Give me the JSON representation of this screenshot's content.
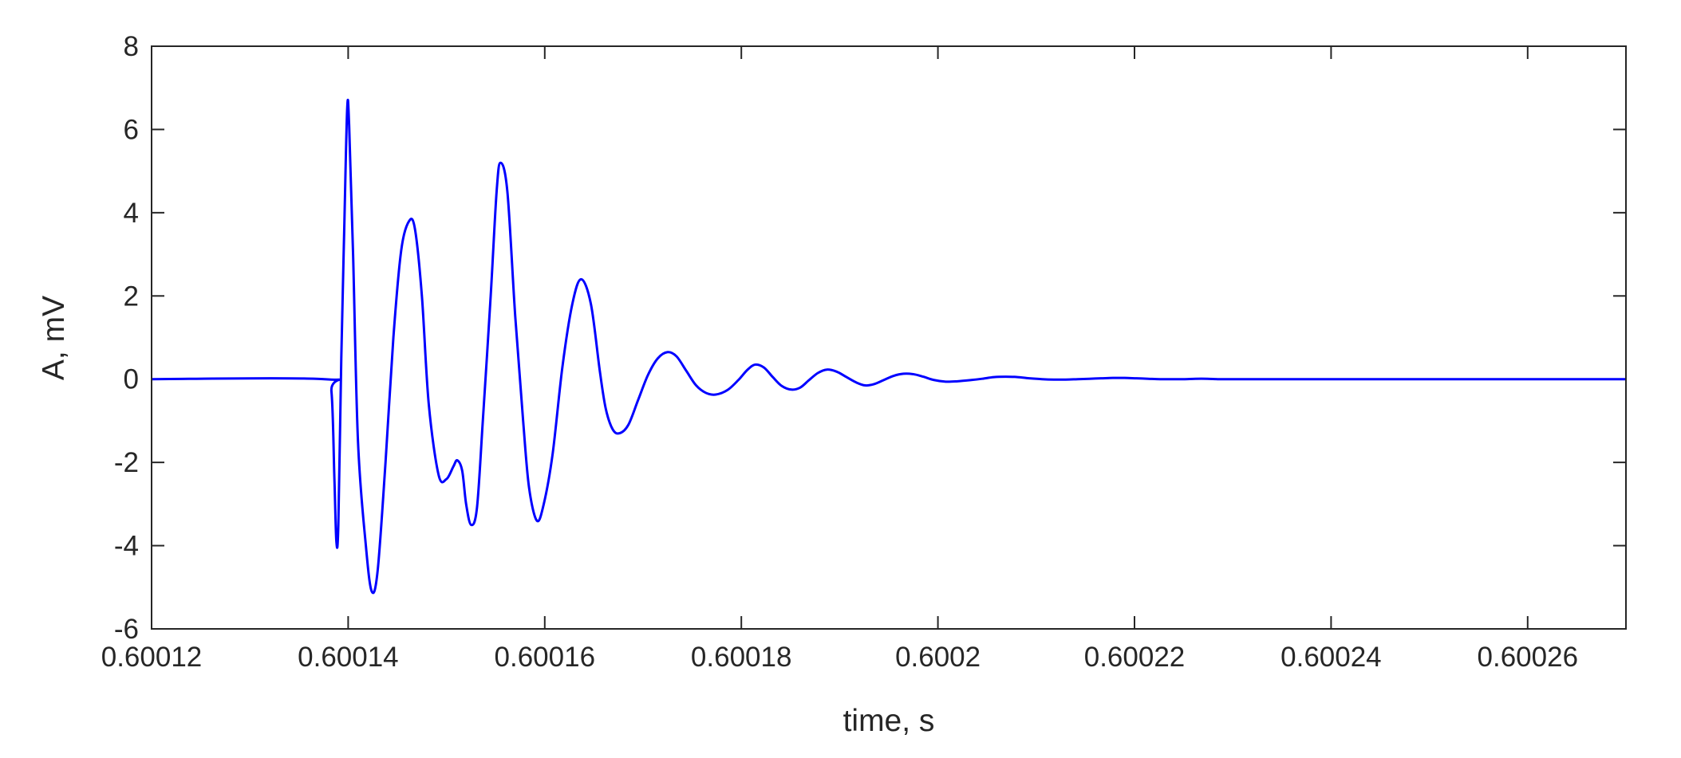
{
  "chart_data": {
    "type": "line",
    "title": "",
    "xlabel": "time, s",
    "ylabel": "A, mV",
    "xlim": [
      0.60012,
      0.60027
    ],
    "ylim": [
      -6,
      8
    ],
    "grid": false,
    "line_color": "#0000ff",
    "axis_color": "#262626",
    "x_ticks": [
      0.60012,
      0.60014,
      0.60016,
      0.60018,
      0.6002,
      0.60022,
      0.60024,
      0.60026
    ],
    "x_tick_labels": [
      "0.60012",
      "0.60014",
      "0.60016",
      "0.60018",
      "0.6002",
      "0.60022",
      "0.60024",
      "0.60026"
    ],
    "y_ticks": [
      -6,
      -4,
      -2,
      0,
      2,
      4,
      6,
      8
    ],
    "y_tick_labels": [
      "-6",
      "-4",
      "-2",
      "0",
      "2",
      "4",
      "6",
      "8"
    ],
    "series": [
      {
        "x": [
          0.60012,
          0.6001376,
          0.6001383,
          0.6001386,
          0.6001388,
          0.600139,
          0.6001393,
          0.6001396,
          0.6001399,
          0.6001401,
          0.6001405,
          0.600141,
          0.6001418,
          0.6001424,
          0.600143,
          0.6001438,
          0.6001446,
          0.6001454,
          0.6001462,
          0.6001468,
          0.6001475,
          0.6001482,
          0.6001492,
          0.60015,
          0.6001507,
          0.6001511,
          0.6001516,
          0.600152,
          0.6001525,
          0.6001531,
          0.6001537,
          0.6001545,
          0.6001551,
          0.6001555,
          0.6001562,
          0.600157,
          0.6001578,
          0.6001584,
          0.6001592,
          0.6001599,
          0.6001608,
          0.6001618,
          0.6001628,
          0.6001637,
          0.6001647,
          0.6001656,
          0.6001662,
          0.6001669,
          0.6001676,
          0.6001685,
          0.6001695,
          0.6001705,
          0.6001715,
          0.6001725,
          0.6001734,
          0.6001744,
          0.6001754,
          0.6001764,
          0.6001774,
          0.6001786,
          0.6001797,
          0.6001806,
          0.6001814,
          0.6001823,
          0.6001832,
          0.6001841,
          0.6001851,
          0.600186,
          0.6001869,
          0.6001878,
          0.6001887,
          0.6001897,
          0.6001907,
          0.6001917,
          0.6001926,
          0.6001935,
          0.6001945,
          0.6001955,
          0.6001965,
          0.6001975,
          0.6001985,
          0.6001996,
          0.6002008,
          0.600202,
          0.6002034,
          0.6002045,
          0.6002057,
          0.6002069,
          0.6002081,
          0.6002093,
          0.6002106,
          0.6002118,
          0.600213,
          0.6002142,
          0.6002154,
          0.6002166,
          0.6002178,
          0.600219,
          0.6002202,
          0.6002214,
          0.6002226,
          0.6002238,
          0.600225,
          0.6002262,
          0.6002274,
          0.6002286,
          0.6002298,
          0.600231,
          0.6002323,
          0.600235,
          0.6002375,
          0.60024,
          0.6002425,
          0.600245,
          0.60027
        ],
        "y": [
          0.0,
          0.0,
          -0.3,
          -2.4,
          -3.9,
          -3.5,
          0.5,
          3.6,
          6.5,
          6.1,
          3.0,
          -1.5,
          -4.0,
          -5.1,
          -4.6,
          -2.0,
          1.0,
          3.1,
          3.8,
          3.6,
          2.0,
          -0.6,
          -2.3,
          -2.4,
          -2.1,
          -1.95,
          -2.2,
          -3.0,
          -3.5,
          -3.1,
          -1.0,
          2.0,
          4.5,
          5.2,
          4.5,
          1.5,
          -1.0,
          -2.6,
          -3.4,
          -3.0,
          -1.8,
          0.3,
          1.8,
          2.4,
          1.8,
          0.2,
          -0.7,
          -1.2,
          -1.3,
          -1.1,
          -0.5,
          0.1,
          0.5,
          0.65,
          0.55,
          0.2,
          -0.15,
          -0.33,
          -0.37,
          -0.26,
          -0.02,
          0.22,
          0.35,
          0.28,
          0.05,
          -0.16,
          -0.25,
          -0.2,
          -0.02,
          0.15,
          0.23,
          0.18,
          0.05,
          -0.08,
          -0.15,
          -0.12,
          -0.02,
          0.08,
          0.13,
          0.12,
          0.06,
          -0.02,
          -0.06,
          -0.05,
          -0.02,
          0.01,
          0.05,
          0.06,
          0.05,
          0.02,
          0.0,
          -0.01,
          -0.01,
          0.0,
          0.01,
          0.02,
          0.03,
          0.03,
          0.02,
          0.01,
          0.0,
          0.0,
          0.0,
          0.01,
          0.01,
          0.0,
          0.0,
          0.0,
          0.0,
          0.0,
          0.0,
          0.0,
          0.0,
          0.0,
          0.0
        ]
      }
    ]
  }
}
